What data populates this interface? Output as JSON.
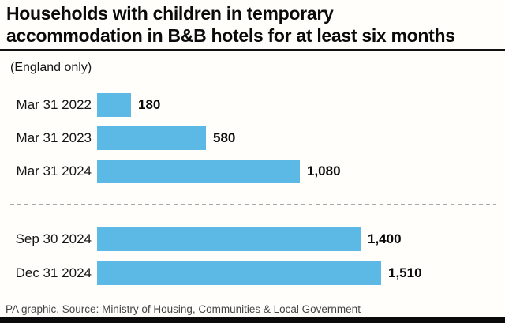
{
  "header": {
    "title_line1": "Households with children in temporary",
    "title_line2": "accommodation in B&B hotels for at least six months"
  },
  "chart_data": {
    "type": "bar",
    "orientation": "horizontal",
    "title": "Households with children in temporary accommodation in B&B hotels for at least six months",
    "subtitle": "(England only)",
    "categories": [
      "Mar 31 2022",
      "Mar 31 2023",
      "Mar 31 2024",
      "Sep 30 2024",
      "Dec 31 2024"
    ],
    "values": [
      180,
      580,
      1080,
      1400,
      1510
    ],
    "xlim": [
      0,
      1510
    ],
    "grid": false,
    "legend": false,
    "bar_color": "#5cb8e4",
    "divider_between": [
      "Mar 31 2024",
      "Sep 30 2024"
    ],
    "rows": [
      {
        "label": "Mar 31 2022",
        "value": 180,
        "value_label": "180"
      },
      {
        "label": "Mar 31 2023",
        "value": 580,
        "value_label": "580"
      },
      {
        "label": "Mar 31 2024",
        "value": 1080,
        "value_label": "1,080"
      },
      {
        "label": "Sep 30 2024",
        "value": 1400,
        "value_label": "1,400"
      },
      {
        "label": "Dec 31 2024",
        "value": 1510,
        "value_label": "1,510"
      }
    ]
  },
  "footer": {
    "source": "PA graphic. Source: Ministry of Housing, Communities & Local Government"
  }
}
